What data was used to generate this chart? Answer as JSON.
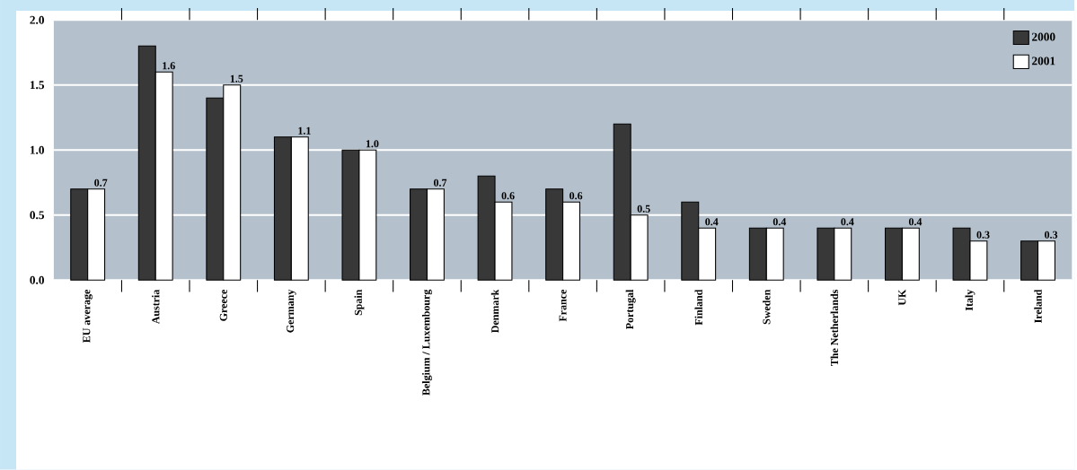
{
  "chart_data": {
    "type": "bar",
    "categories": [
      "EU average",
      "Austria",
      "Greece",
      "Germany",
      "Spain",
      "Belgium / Luxembourg",
      "Denmark",
      "France",
      "Portugal",
      "Finland",
      "Sweden",
      "The Netherlands",
      "UK",
      "Italy",
      "Ireland"
    ],
    "series": [
      {
        "name": "2000",
        "color": "#383838",
        "values": [
          0.7,
          1.8,
          1.4,
          1.1,
          1.0,
          0.7,
          0.8,
          0.7,
          1.2,
          0.6,
          0.4,
          0.4,
          0.4,
          0.4,
          0.3
        ]
      },
      {
        "name": "2001",
        "color": "#ffffff",
        "values": [
          0.7,
          1.6,
          1.5,
          1.1,
          1.0,
          0.7,
          0.6,
          0.6,
          0.5,
          0.4,
          0.4,
          0.4,
          0.4,
          0.3,
          0.3
        ],
        "value_labels": [
          "0.7",
          "1.6",
          "1.5",
          "1.1",
          "1.0",
          "0.7",
          "0.6",
          "0.6",
          "0.5",
          "0.4",
          "0.4",
          "0.4",
          "0.4",
          "0.3",
          "0.3"
        ]
      }
    ],
    "ylim": [
      0,
      2.0
    ],
    "yticks": [
      {
        "value": 0,
        "label": "0.0"
      },
      {
        "value": 0.5,
        "label": "0.5"
      },
      {
        "value": 1.0,
        "label": "1.0"
      },
      {
        "value": 1.5,
        "label": "1.5"
      },
      {
        "value": 2.0,
        "label": "2.0"
      }
    ],
    "grid": "y",
    "legend": "top right"
  }
}
